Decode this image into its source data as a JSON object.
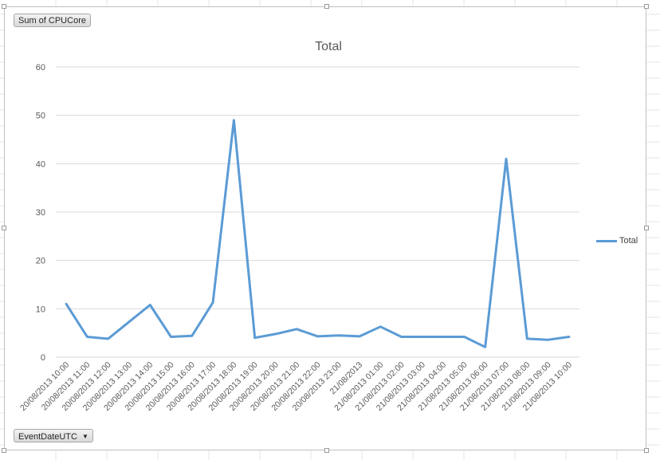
{
  "field_buttons": {
    "value_field": "Sum of CPUCore",
    "axis_field": "EventDateUTC"
  },
  "colors": {
    "series": "#5b9bd5",
    "gridline": "#d9d9d9",
    "sheet_grid": "#e4e4e4",
    "text": "#595959"
  },
  "chart_data": {
    "type": "line",
    "title": "Total",
    "xlabel": "",
    "ylabel": "",
    "ylim": [
      0,
      60
    ],
    "yticks": [
      0,
      10,
      20,
      30,
      40,
      50,
      60
    ],
    "grid": true,
    "legend_position": "right",
    "categories": [
      "20/08/2013 10:00",
      "20/08/2013 11:00",
      "20/08/2013 12:00",
      "20/08/2013 13:00",
      "20/08/2013 14:00",
      "20/08/2013 15:00",
      "20/08/2013 16:00",
      "20/08/2013 17:00",
      "20/08/2013 18:00",
      "20/08/2013 19:00",
      "20/08/2013 20:00",
      "20/08/2013 21:00",
      "20/08/2013 22:00",
      "20/08/2013 23:00",
      "21/08/2013",
      "21/08/2013 01:00",
      "21/08/2013 02:00",
      "21/08/2013 03:00",
      "21/08/2013 04:00",
      "21/08/2013 05:00",
      "21/08/2013 06:00",
      "21/08/2013 07:00",
      "21/08/2013 08:00",
      "21/08/2013 09:00",
      "21/08/2013 10:00"
    ],
    "series": [
      {
        "name": "Total",
        "values": [
          11,
          4.2,
          3.8,
          7.3,
          10.8,
          4.2,
          4.4,
          11.3,
          49,
          4,
          4.8,
          5.8,
          4.3,
          4.5,
          4.3,
          6.3,
          4.2,
          4.2,
          4.2,
          4.2,
          2.1,
          41,
          3.8,
          3.6,
          4.2
        ]
      }
    ]
  }
}
